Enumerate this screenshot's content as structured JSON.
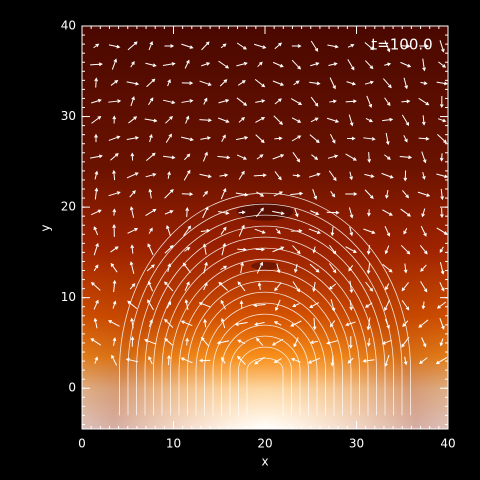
{
  "chart_data": {
    "type": "field",
    "annotation": "t=100.0",
    "x_label": "x",
    "y_label": "y",
    "xlim": [
      0,
      40
    ],
    "ylim": [
      -4.5,
      40
    ],
    "xticks": [
      0,
      10,
      20,
      30,
      40
    ],
    "yticks": [
      0,
      10,
      20,
      30,
      40
    ]
  }
}
